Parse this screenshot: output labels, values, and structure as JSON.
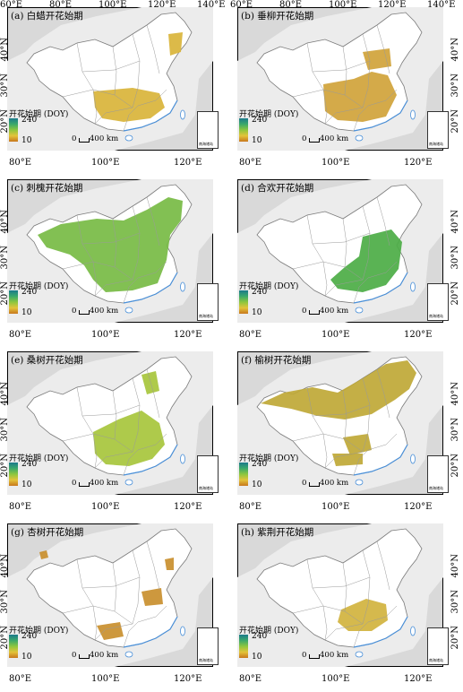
{
  "figure": {
    "legend": {
      "title": "开花始期 (DOY)",
      "max": "240",
      "min": "10"
    },
    "scalebar": {
      "zero": "0",
      "distance": "400 km"
    },
    "inset_label": "南海诸岛",
    "colors": {
      "early": "#c8771d",
      "mid": "#8cc63e",
      "late": "#1c7a8c",
      "land": "#ffffff",
      "sea": "#d9d9d9",
      "border": "#7a7a7a",
      "river": "#4a90d9"
    },
    "lon_ticks_top": [
      "60°E",
      "80°E",
      "100°E",
      "120°E",
      "140°E"
    ],
    "lon_ticks_bottom": [
      "80°E",
      "100°E",
      "120°E"
    ],
    "lat_ticks": [
      "40°N",
      "30°N",
      "20°N"
    ]
  },
  "panels": [
    {
      "id": "a",
      "title": "(a) 白蜡开花始期",
      "coverage": "south-central",
      "mean_color": "#d9b43a"
    },
    {
      "id": "b",
      "title": "(b) 垂柳开花始期",
      "coverage": "east-south",
      "mean_color": "#d0a33a"
    },
    {
      "id": "c",
      "title": "(c) 刺槐开花始期",
      "coverage": "north-east-wide",
      "mean_color": "#77bb44"
    },
    {
      "id": "d",
      "title": "(d) 合欢开花始期",
      "coverage": "east",
      "mean_color": "#4cad45"
    },
    {
      "id": "e",
      "title": "(e) 桑树开花始期",
      "coverage": "central-south",
      "mean_color": "#a7c63c"
    },
    {
      "id": "f",
      "title": "(f) 榆树开花始期",
      "coverage": "north-wide",
      "mean_color": "#bfa836"
    },
    {
      "id": "g",
      "title": "(g) 杏树开花始期",
      "coverage": "sparse",
      "mean_color": "#c98f2e"
    },
    {
      "id": "h",
      "title": "(h) 紫荆开花始期",
      "coverage": "central",
      "mean_color": "#d1b33e"
    }
  ]
}
